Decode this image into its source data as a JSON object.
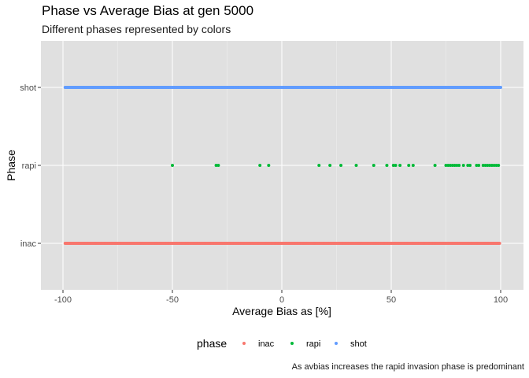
{
  "chart_data": {
    "type": "scatter",
    "title": "Phase vs Average Bias at gen 5000",
    "subtitle": "Different phases represented by colors",
    "xlabel": "Average Bias as [%]",
    "ylabel": "Phase",
    "caption": "As avbias increases the rapid invasion phase is predominant",
    "xlim": [
      -105,
      105
    ],
    "x_ticks": [
      "-100",
      "-50",
      "0",
      "50",
      "100"
    ],
    "x_tick_values": [
      -100,
      -50,
      0,
      50,
      100
    ],
    "categories": [
      "inac",
      "rapi",
      "shot"
    ],
    "grid": true,
    "legend_position": "bottom",
    "legend_title": "phase",
    "series": [
      {
        "name": "inac",
        "color": "#F8766D",
        "x_range": [
          -99,
          99.5
        ],
        "dense": true,
        "values": []
      },
      {
        "name": "rapi",
        "color": "#00BA38",
        "dense": false,
        "values": [
          -50,
          -30,
          -29,
          -10,
          -6,
          17,
          22,
          27,
          34,
          42,
          48,
          51,
          52,
          54,
          58,
          60,
          70,
          75,
          76,
          77,
          78,
          79,
          80,
          81,
          83,
          85,
          86,
          89,
          90,
          92,
          93,
          94,
          95,
          96,
          97,
          98,
          99
        ]
      },
      {
        "name": "shot",
        "color": "#619CFF",
        "x_range": [
          -99,
          100
        ],
        "dense": true,
        "values": []
      }
    ]
  }
}
